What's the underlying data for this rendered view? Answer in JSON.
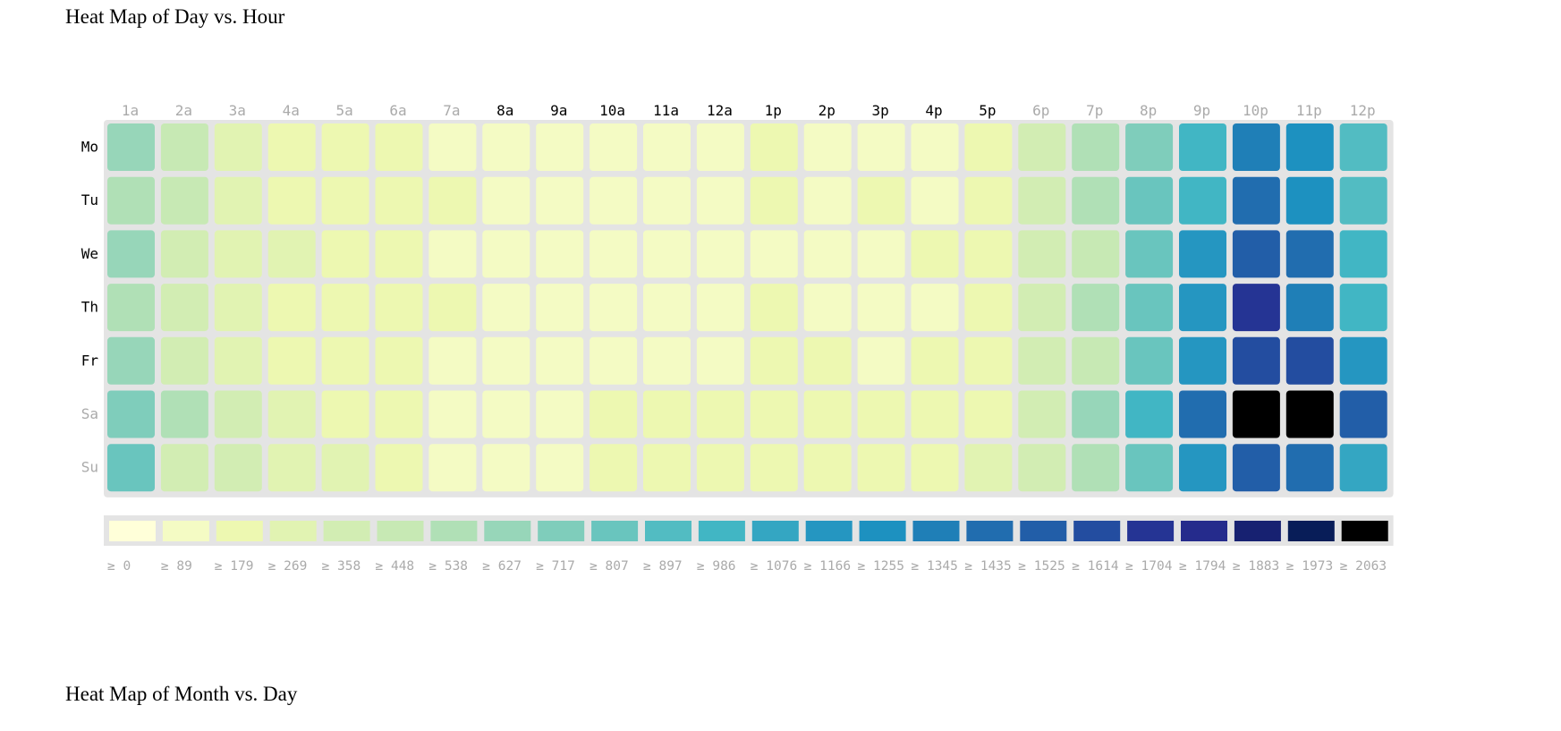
{
  "charts": {
    "day_hour": {
      "title": "Heat Map of Day vs. Hour"
    },
    "month_day": {
      "title": "Heat Map of Month vs. Day"
    }
  },
  "chart_data": {
    "type": "heatmap",
    "title": "Heat Map of Day vs. Hour",
    "x_labels": [
      "1a",
      "2a",
      "3a",
      "4a",
      "5a",
      "6a",
      "7a",
      "8a",
      "9a",
      "10a",
      "11a",
      "12a",
      "1p",
      "2p",
      "3p",
      "4p",
      "5p",
      "6p",
      "7p",
      "8p",
      "9p",
      "10p",
      "11p",
      "12p"
    ],
    "x_label_active": [
      false,
      false,
      false,
      false,
      false,
      false,
      false,
      true,
      true,
      true,
      true,
      true,
      true,
      true,
      true,
      true,
      true,
      false,
      false,
      false,
      false,
      false,
      false,
      false
    ],
    "y_labels": [
      "Mo",
      "Tu",
      "We",
      "Th",
      "Fr",
      "Sa",
      "Su"
    ],
    "y_label_active": [
      true,
      true,
      true,
      true,
      true,
      false,
      false
    ],
    "values": [
      [
        627,
        448,
        269,
        179,
        179,
        179,
        89,
        89,
        89,
        89,
        89,
        89,
        179,
        89,
        89,
        89,
        179,
        358,
        538,
        717,
        986,
        1345,
        1255,
        897
      ],
      [
        538,
        448,
        269,
        179,
        179,
        179,
        179,
        89,
        89,
        89,
        89,
        89,
        179,
        89,
        179,
        89,
        179,
        358,
        538,
        807,
        986,
        1435,
        1255,
        897
      ],
      [
        627,
        358,
        269,
        269,
        179,
        179,
        89,
        89,
        89,
        89,
        89,
        89,
        89,
        89,
        89,
        179,
        179,
        358,
        448,
        807,
        1166,
        1525,
        1435,
        986
      ],
      [
        538,
        358,
        269,
        179,
        179,
        179,
        179,
        89,
        89,
        89,
        89,
        89,
        179,
        89,
        89,
        89,
        179,
        358,
        538,
        807,
        1166,
        1704,
        1345,
        986
      ],
      [
        627,
        358,
        269,
        179,
        179,
        179,
        89,
        89,
        89,
        89,
        89,
        89,
        179,
        179,
        89,
        179,
        179,
        358,
        448,
        807,
        1166,
        1614,
        1614,
        1166
      ],
      [
        717,
        538,
        358,
        269,
        179,
        179,
        89,
        89,
        89,
        179,
        179,
        179,
        179,
        179,
        179,
        179,
        179,
        358,
        627,
        986,
        1435,
        2063,
        2063,
        1525
      ],
      [
        807,
        358,
        358,
        269,
        269,
        179,
        89,
        89,
        89,
        179,
        179,
        179,
        179,
        179,
        179,
        179,
        269,
        358,
        538,
        807,
        1166,
        1525,
        1435,
        1076
      ]
    ],
    "legend": {
      "thresholds": [
        0,
        89,
        179,
        269,
        358,
        448,
        538,
        627,
        717,
        807,
        897,
        986,
        1076,
        1166,
        1255,
        1345,
        1435,
        1525,
        1614,
        1704,
        1794,
        1883,
        1973,
        2063
      ],
      "labels": [
        "≥ 0",
        "≥ 89",
        "≥ 179",
        "≥ 269",
        "≥ 358",
        "≥ 448",
        "≥ 538",
        "≥ 627",
        "≥ 717",
        "≥ 807",
        "≥ 897",
        "≥ 986",
        "≥ 1076",
        "≥ 1166",
        "≥ 1255",
        "≥ 1345",
        "≥ 1435",
        "≥ 1525",
        "≥ 1614",
        "≥ 1704",
        "≥ 1794",
        "≥ 1883",
        "≥ 1973",
        "≥ 2063"
      ],
      "colors": [
        "#ffffd9",
        "#f4fbc4",
        "#edf8b1",
        "#e1f3b2",
        "#d2edb3",
        "#c7e9b4",
        "#b0e0b6",
        "#97d6b9",
        "#7fcdbb",
        "#69c5be",
        "#52bcc2",
        "#41b6c4",
        "#34a6c2",
        "#2596c1",
        "#1d91c0",
        "#1f7fb7",
        "#216daf",
        "#225ea8",
        "#234da0",
        "#253494",
        "#252b8c",
        "#172171",
        "#081d58",
        "#000000"
      ],
      "placement": "bottom"
    },
    "colors": {
      "grid_background": "#e4e4e4",
      "label_active": "#000000",
      "label_inactive": "#aaaaaa",
      "legend_text": "#aaaaaa"
    },
    "grid": true
  }
}
